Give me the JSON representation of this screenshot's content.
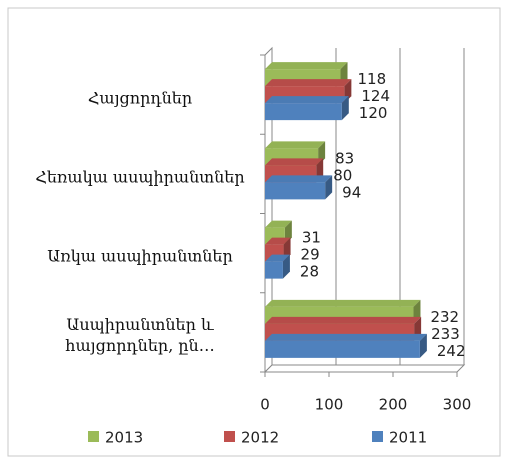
{
  "chart_data": {
    "type": "bar",
    "orientation": "horizontal",
    "three_d": true,
    "categories": [
      "Հայցորդներ",
      "Հեռակա ասպիրանտներ",
      "Առկա ասպիրանտներ",
      "Ասպիրանտներ և հայցորդներ, ըն…"
    ],
    "series": [
      {
        "name": "2013",
        "color": "#9bbb59",
        "values": [
          118,
          83,
          31,
          232
        ]
      },
      {
        "name": "2012",
        "color": "#c0504d",
        "values": [
          124,
          80,
          29,
          233
        ]
      },
      {
        "name": "2011",
        "color": "#4f81bd",
        "values": [
          120,
          94,
          28,
          242
        ]
      }
    ],
    "xlim": [
      0,
      300
    ],
    "xticks": [
      0,
      100,
      200,
      300
    ],
    "grid": true,
    "legend": "bottom"
  }
}
